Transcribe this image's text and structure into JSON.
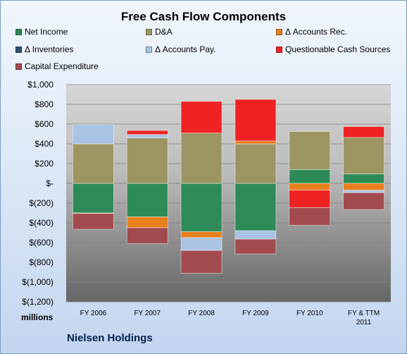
{
  "chart_data": {
    "type": "bar",
    "title": "Free Cash Flow Components",
    "categories": [
      "FY 2006",
      "FY 2007",
      "FY 2008",
      "FY 2009",
      "FY 2010",
      "FY & TTM 2011"
    ],
    "ylim": [
      -1200,
      1000
    ],
    "ytick_labels": [
      "$1,000",
      "$800",
      "$600",
      "$400",
      "$200",
      "$-",
      "$(200)",
      "$(400)",
      "$(600)",
      "$(800)",
      "$(1,000)",
      "$(1,200)"
    ],
    "ylabel": "millions",
    "grid": true,
    "legend": "top",
    "series": [
      {
        "name": "Net Income",
        "color": "#2e8b57",
        "values": [
          -300,
          -340,
          -490,
          -480,
          140,
          95
        ]
      },
      {
        "name": "D&A",
        "color": "#9c9561",
        "values": [
          400,
          460,
          510,
          400,
          385,
          370
        ]
      },
      {
        "name": "Δ Accounts Rec.",
        "color": "#e8801e",
        "values": [
          -5,
          -110,
          -60,
          30,
          -70,
          -70
        ]
      },
      {
        "name": "Δ Inventories",
        "color": "#2f4f6f",
        "values": [
          0,
          0,
          0,
          0,
          0,
          0
        ]
      },
      {
        "name": "Δ Accounts Pay.",
        "color": "#a9c4e4",
        "values": [
          195,
          35,
          -130,
          -85,
          0,
          -25
        ]
      },
      {
        "name": "Questionable Cash Sources",
        "color": "#ee2222",
        "values": [
          0,
          40,
          320,
          420,
          -175,
          110
        ]
      },
      {
        "name": "Capital Expenditure",
        "color": "#a24b4f",
        "values": [
          -160,
          -160,
          -230,
          -150,
          -180,
          -170
        ]
      }
    ]
  },
  "footer": {
    "company": "Nielsen Holdings"
  }
}
